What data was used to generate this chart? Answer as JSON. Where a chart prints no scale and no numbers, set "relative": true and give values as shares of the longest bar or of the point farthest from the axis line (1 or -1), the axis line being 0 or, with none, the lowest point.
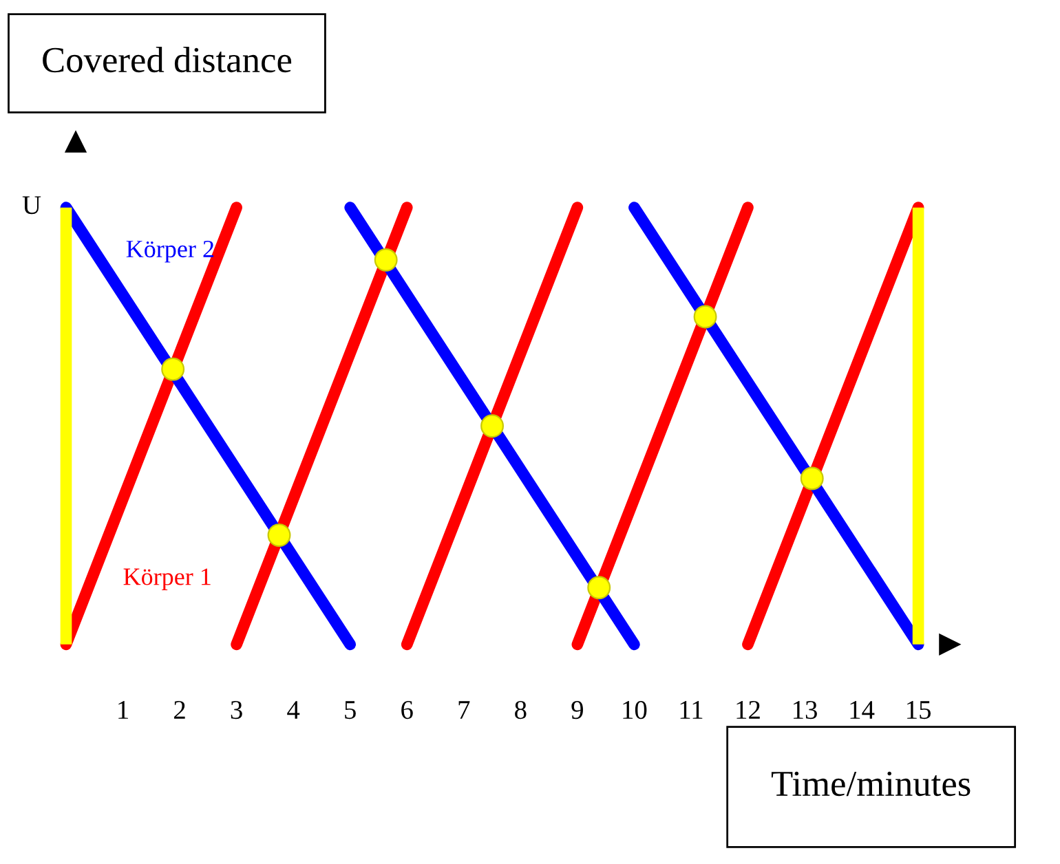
{
  "chart_data": {
    "type": "line",
    "relative": true,
    "ylabel": "Covered distance",
    "xlabel": "Time/minutes",
    "xlim": [
      0,
      15
    ],
    "xticks": [
      1,
      2,
      3,
      4,
      5,
      6,
      7,
      8,
      9,
      10,
      11,
      12,
      13,
      14,
      15
    ],
    "tick_labels": "x",
    "grid": false,
    "annotations": [
      {
        "text": "U",
        "x": 0,
        "y": 1
      }
    ],
    "ref_lines": [
      {
        "axis": "x",
        "value": 0,
        "color": "#ffff00"
      },
      {
        "axis": "x",
        "value": 15,
        "color": "#ffff00"
      }
    ],
    "series": [
      {
        "name": "Körper 1",
        "color": "#ff0000",
        "x": [
          0,
          3
        ],
        "values": [
          0,
          1
        ]
      },
      {
        "color": "#ff0000",
        "x": [
          3,
          6
        ],
        "values": [
          0,
          1
        ]
      },
      {
        "color": "#ff0000",
        "x": [
          6,
          9
        ],
        "values": [
          0,
          1
        ]
      },
      {
        "color": "#ff0000",
        "x": [
          9,
          12
        ],
        "values": [
          0,
          1
        ]
      },
      {
        "color": "#ff0000",
        "x": [
          12,
          15
        ],
        "values": [
          0,
          1
        ]
      },
      {
        "name": "Körper 2",
        "color": "#0000ff",
        "x": [
          0,
          5
        ],
        "values": [
          1,
          0
        ]
      },
      {
        "color": "#0000ff",
        "x": [
          5,
          10
        ],
        "values": [
          1,
          0
        ]
      },
      {
        "color": "#0000ff",
        "x": [
          10,
          15
        ],
        "values": [
          1,
          0
        ]
      },
      {
        "type": "scatter",
        "marker": "circle",
        "color": "#ffff00",
        "x": [
          1.88,
          3.75,
          5.63,
          7.5,
          9.38,
          11.25,
          13.13
        ],
        "values": [
          0.63,
          0.25,
          0.88,
          0.5,
          0.13,
          0.75,
          0.38
        ]
      }
    ]
  }
}
